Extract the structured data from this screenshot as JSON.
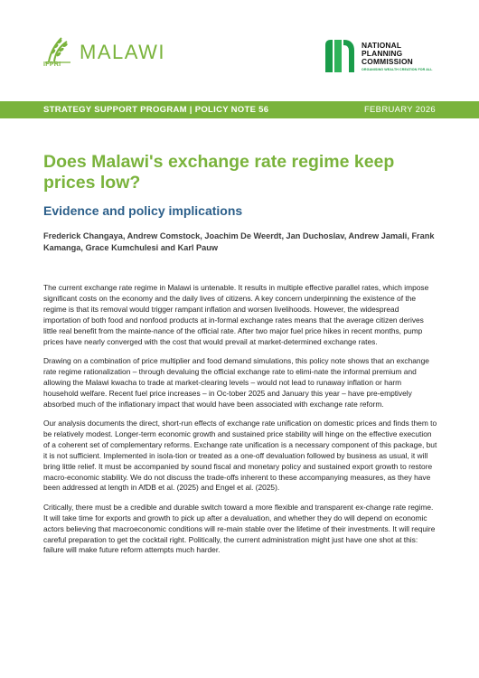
{
  "header": {
    "ifpri_label": "IFPRI",
    "malawi_label": "MALAWI",
    "npc_line1": "NATIONAL",
    "npc_line2": "PLANNING",
    "npc_line3": "COMMISSION",
    "npc_tagline": "ORGANISING WEALTH CREATION FOR ALL",
    "brand_green": "#7ab33c",
    "npc_green": "#1a9c4a"
  },
  "band": {
    "left": "STRATEGY SUPPORT PROGRAM | POLICY NOTE 56",
    "right": "FEBRUARY 2026"
  },
  "title": "Does Malawi's exchange rate regime keep prices low?",
  "subtitle": "Evidence and policy implications",
  "authors": "Frederick Changaya, Andrew Comstock, Joachim De Weerdt, Jan Duchoslav, Andrew Jamali, Frank Kamanga, Grace Kumchulesi and Karl Pauw",
  "paragraphs": [
    "The current exchange rate regime in Malawi is untenable. It results in multiple effective parallel rates, which impose significant costs on the economy and the daily lives of citizens. A key concern underpinning the existence of the regime is that its removal would trigger rampant inflation and worsen livelihoods. However, the widespread importation of both food and nonfood products at in-formal exchange rates means that the average citizen derives little real benefit from the mainte-nance of the official rate. After two major fuel price hikes in recent months, pump prices have nearly converged with the cost that would prevail at market-determined exchange rates.",
    "Drawing on a combination of price multiplier and food demand simulations, this policy note shows that an exchange rate regime rationalization – through devaluing the official exchange rate to elimi-nate the informal premium and allowing the Malawi kwacha to trade at market-clearing levels – would not lead to runaway inflation or harm household welfare. Recent fuel price increases – in Oc-tober 2025 and January this year – have pre-emptively absorbed much of the inflationary impact that would have been associated with exchange rate reform.",
    "Our analysis documents the direct, short-run effects of exchange rate unification on domestic prices and finds them to be relatively modest. Longer-term economic growth and sustained price stability will hinge on the effective execution of a coherent set of complementary reforms. Exchange rate unification is a necessary component of this package, but it is not sufficient. Implemented in isola-tion or treated as a one-off devaluation followed by business as usual, it will bring little relief. It must be accompanied by sound fiscal and monetary policy and sustained export growth to restore macro-economic stability. We do not discuss the trade-offs inherent to these accompanying measures, as they have been addressed at length in AfDB et al. (2025) and Engel et al. (2025).",
    "Critically, there must be a credible and durable switch toward a more flexible and transparent ex-change rate regime. It will take time for exports and growth to pick up after a devaluation, and whether they do will depend on economic actors believing that macroeconomic conditions will re-main stable over the lifetime of their investments. It will require careful preparation to get the cocktail right. Politically, the current administration might just have one shot at this: failure will make future reform attempts much harder."
  ]
}
